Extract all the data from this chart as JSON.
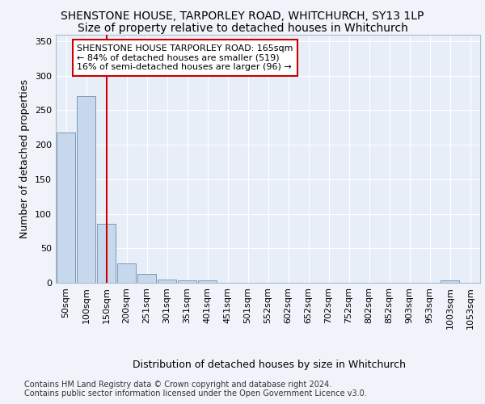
{
  "title": "SHENSTONE HOUSE, TARPORLEY ROAD, WHITCHURCH, SY13 1LP",
  "subtitle": "Size of property relative to detached houses in Whitchurch",
  "xlabel": "Distribution of detached houses by size in Whitchurch",
  "ylabel": "Number of detached properties",
  "categories": [
    "50sqm",
    "100sqm",
    "150sqm",
    "200sqm",
    "251sqm",
    "301sqm",
    "351sqm",
    "401sqm",
    "451sqm",
    "501sqm",
    "552sqm",
    "602sqm",
    "652sqm",
    "702sqm",
    "752sqm",
    "802sqm",
    "852sqm",
    "903sqm",
    "953sqm",
    "1003sqm",
    "1053sqm"
  ],
  "values": [
    218,
    270,
    85,
    28,
    13,
    5,
    4,
    4,
    0,
    0,
    0,
    0,
    0,
    0,
    0,
    0,
    0,
    0,
    0,
    3,
    0
  ],
  "bar_color": "#c8d8ec",
  "bar_edge_color": "#7799bb",
  "vline_x": 2,
  "vline_color": "#cc0000",
  "annotation_text": "SHENSTONE HOUSE TARPORLEY ROAD: 165sqm\n← 84% of detached houses are smaller (519)\n16% of semi-detached houses are larger (96) →",
  "annotation_box_facecolor": "#ffffff",
  "annotation_box_edgecolor": "#cc0000",
  "ylim": [
    0,
    360
  ],
  "yticks": [
    0,
    50,
    100,
    150,
    200,
    250,
    300,
    350
  ],
  "footer_text": "Contains HM Land Registry data © Crown copyright and database right 2024.\nContains public sector information licensed under the Open Government Licence v3.0.",
  "background_color": "#f0f4fa",
  "plot_bg_color": "#e8eef8",
  "grid_color": "#ffffff",
  "title_fontsize": 10,
  "subtitle_fontsize": 10,
  "ylabel_fontsize": 9,
  "xlabel_fontsize": 9,
  "tick_fontsize": 8,
  "annotation_fontsize": 8,
  "footer_fontsize": 7
}
